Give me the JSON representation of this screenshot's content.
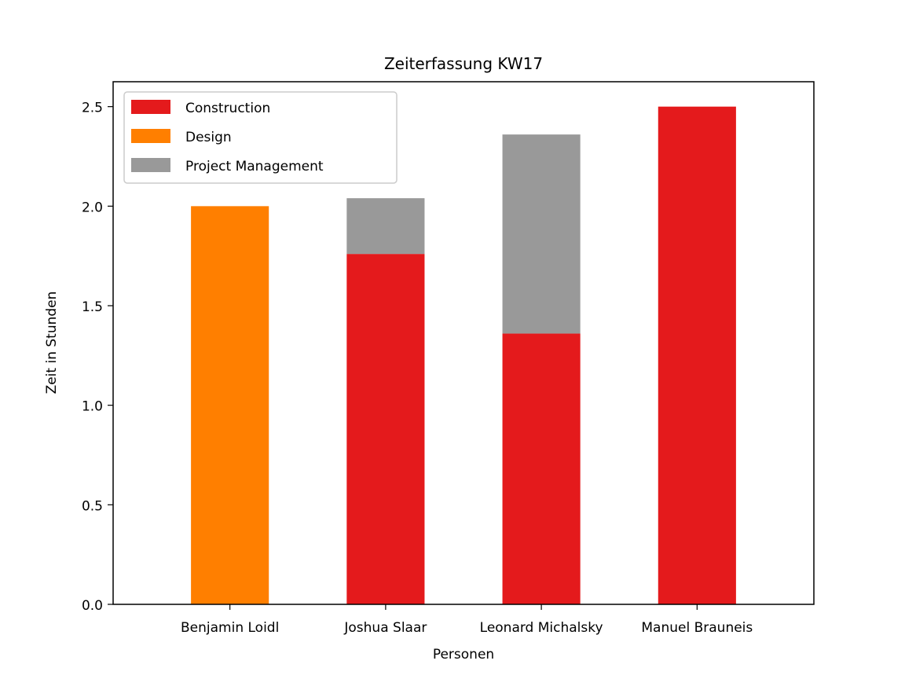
{
  "chart_data": {
    "type": "bar",
    "stacked": true,
    "title": "Zeiterfassung KW17",
    "xlabel": "Personen",
    "ylabel": "Zeit in Stunden",
    "categories": [
      "Benjamin Loidl",
      "Joshua Slaar",
      "Leonard Michalsky",
      "Manuel Brauneis"
    ],
    "series": [
      {
        "name": "Construction",
        "color": "#e41a1c",
        "values": [
          0,
          1.76,
          1.36,
          2.5
        ]
      },
      {
        "name": "Design",
        "color": "#ff7f00",
        "values": [
          2.0,
          0,
          0,
          0
        ]
      },
      {
        "name": "Project Management",
        "color": "#999999",
        "values": [
          0,
          0.28,
          1.0,
          0
        ]
      }
    ],
    "ylim": [
      0,
      2.625
    ],
    "yticks": [
      0.0,
      0.5,
      1.0,
      1.5,
      2.0,
      2.5
    ],
    "ytick_labels": [
      "0.0",
      "0.5",
      "1.0",
      "1.5",
      "2.0",
      "2.5"
    ],
    "grid": false,
    "legend_position": "top-left"
  }
}
